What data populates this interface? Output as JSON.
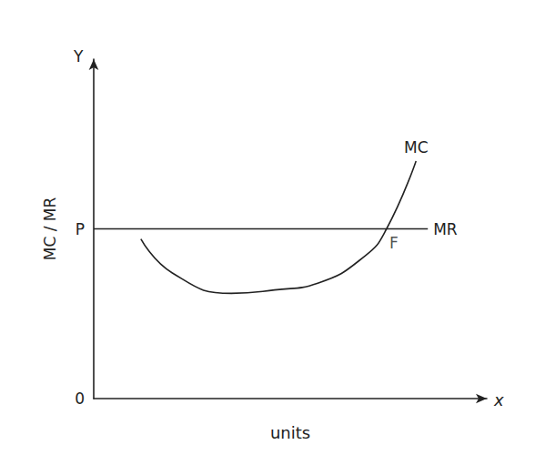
{
  "chart_data": {
    "type": "line",
    "x_label": "units",
    "y_label": "MC / MR",
    "x_axis_name": "x",
    "y_axis_name": "Y",
    "xlim": [
      0,
      10
    ],
    "ylim": [
      0,
      10
    ],
    "xticks": [],
    "yticks": [
      0,
      {
        "value": 5,
        "label": "P"
      }
    ],
    "tick_labels": "y",
    "grid": false,
    "series": [
      {
        "name": "MC",
        "color": "#222222",
        "line_style": "solid",
        "x": [
          1.2,
          2.0,
          3.5,
          4.6,
          5.7,
          6.9,
          7.45,
          8.2
        ],
        "values": [
          4.7,
          3.7,
          3.1,
          3.2,
          3.4,
          4.2,
          5.0,
          7.0
        ]
      },
      {
        "name": "MR",
        "color": "#222222",
        "line_style": "solid",
        "x": [
          0,
          8.5
        ],
        "values": [
          5.0,
          5.0
        ]
      }
    ],
    "annotations": [
      {
        "text": "F",
        "x": 7.45,
        "y": 5.0
      }
    ]
  }
}
